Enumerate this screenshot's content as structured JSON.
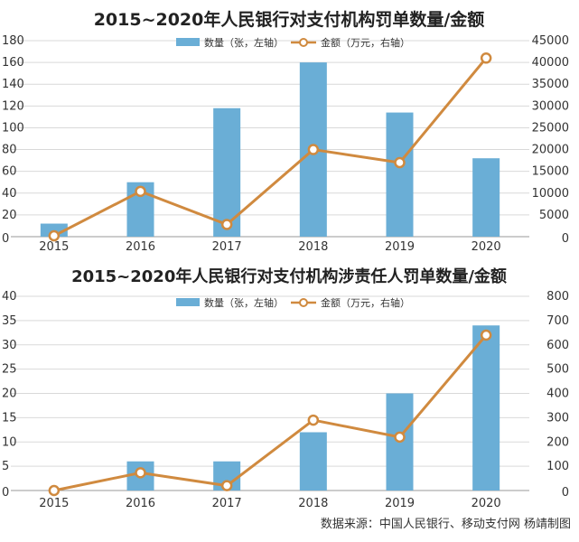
{
  "chart_data": [
    {
      "type": "bar+line",
      "title": "2015~2020年人民银行对支付机构罚单数量/金额",
      "categories": [
        "2015",
        "2016",
        "2017",
        "2018",
        "2019",
        "2020"
      ],
      "series": [
        {
          "name": "数量（张，左轴）",
          "type": "bar",
          "axis": "left",
          "color": "#6aaed6",
          "values": [
            12,
            50,
            118,
            160,
            114,
            72
          ]
        },
        {
          "name": "金额（万元，右轴）",
          "type": "line",
          "axis": "right",
          "color": "#d08a3f",
          "values": [
            200,
            10400,
            2800,
            20000,
            17000,
            41000
          ]
        }
      ],
      "left_axis": {
        "ylim": [
          0,
          180
        ],
        "ticks": [
          "0",
          "20",
          "40",
          "60",
          "80",
          "100",
          "120",
          "140",
          "160",
          "180"
        ]
      },
      "right_axis": {
        "ylim": [
          0,
          45000
        ],
        "ticks": [
          "0",
          "5000",
          "10000",
          "15000",
          "20000",
          "25000",
          "30000",
          "35000",
          "40000",
          "45000"
        ]
      },
      "grid": true,
      "legend_position": "top"
    },
    {
      "type": "bar+line",
      "title": "2015~2020年人民银行对支付机构涉责任人罚单数量/金额",
      "categories": [
        "2015",
        "2016",
        "2017",
        "2018",
        "2019",
        "2020"
      ],
      "series": [
        {
          "name": "数量（张，左轴）",
          "type": "bar",
          "axis": "left",
          "color": "#6aaed6",
          "values": [
            0,
            6,
            6,
            12,
            20,
            34
          ]
        },
        {
          "name": "金额（万元，右轴）",
          "type": "line",
          "axis": "right",
          "color": "#d08a3f",
          "values": [
            0,
            73,
            20,
            290,
            220,
            640
          ]
        }
      ],
      "left_axis": {
        "ylim": [
          0,
          40
        ],
        "ticks": [
          "0",
          "5",
          "10",
          "15",
          "20",
          "25",
          "30",
          "35",
          "40"
        ]
      },
      "right_axis": {
        "ylim": [
          0,
          800
        ],
        "ticks": [
          "0",
          "100",
          "200",
          "300",
          "400",
          "500",
          "600",
          "700",
          "800"
        ]
      },
      "grid": true,
      "legend_position": "top"
    }
  ],
  "source_note": "数据来源：中国人民银行、移动支付网    杨靖制图"
}
